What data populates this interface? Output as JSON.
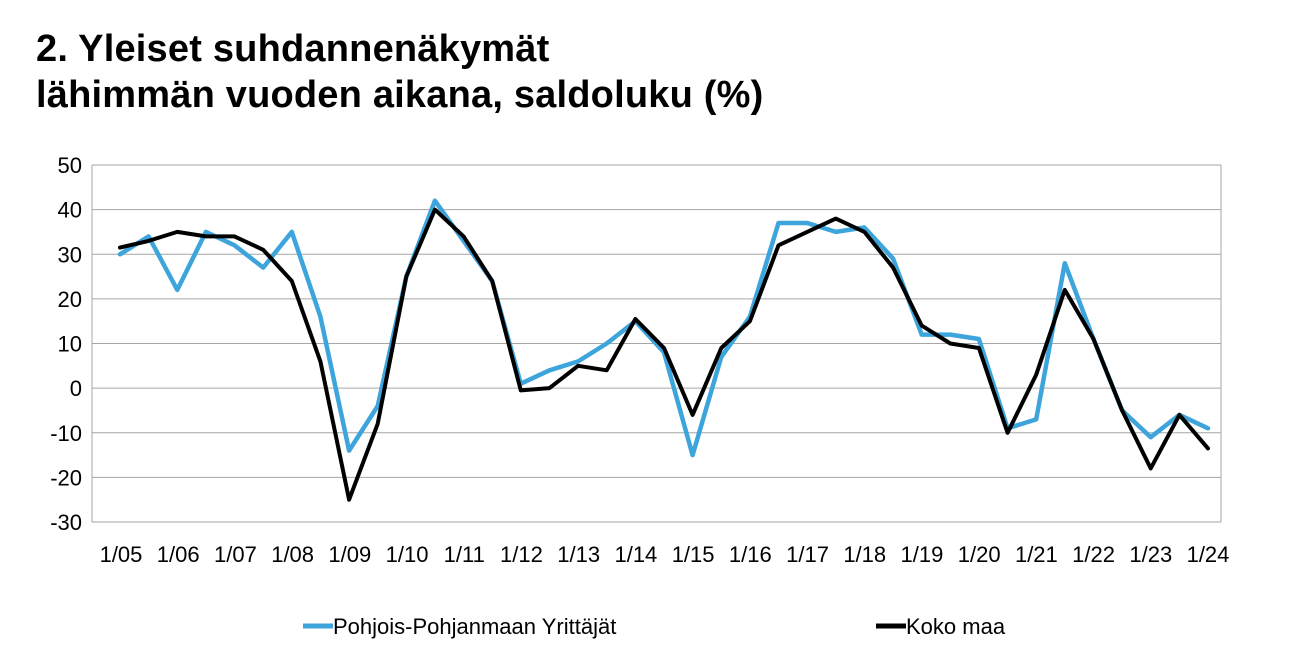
{
  "chart_data": {
    "type": "line",
    "title": "2. Yleiset suhdannenäkymät lähimmän vuoden aikana, saldoluku (%)",
    "title_lines": [
      "2. Yleiset suhdannenäkymät",
      "lähimmän vuoden aikana, saldoluku (%)"
    ],
    "ylim": [
      -30,
      50
    ],
    "yticks": [
      50,
      40,
      30,
      20,
      10,
      0,
      -10,
      -20,
      -30
    ],
    "xtick_labels": [
      "1/05",
      "1/06",
      "1/07",
      "1/08",
      "1/09",
      "1/10",
      "1/11",
      "1/12",
      "1/13",
      "1/14",
      "1/15",
      "1/16",
      "1/17",
      "1/18",
      "1/19",
      "1/20",
      "1/21",
      "1/22",
      "1/23",
      "1/24"
    ],
    "grid": true,
    "legend_position": "bottom",
    "x_period_start": "1/05",
    "series": [
      {
        "name": "Pohjois-Pohjanmaan Yrittäjät",
        "color": "#3ea4dc",
        "values": [
          30,
          34,
          22,
          35,
          32,
          27,
          35,
          16,
          -14,
          -4,
          25,
          42,
          33,
          24,
          1,
          4,
          6,
          10,
          15,
          8,
          -15,
          7,
          16,
          37,
          37,
          35,
          36,
          29,
          12,
          12,
          11,
          -9,
          -7,
          28,
          11,
          -5,
          -11,
          -6,
          -9
        ]
      },
      {
        "name": "Koko maa",
        "color": "#000000",
        "values": [
          31.5,
          33,
          35,
          34,
          34,
          31,
          24,
          6,
          -25,
          -8,
          25,
          40,
          34,
          24,
          -0.5,
          0,
          5,
          4,
          15.5,
          9,
          -6,
          9,
          15,
          32,
          35,
          38,
          35,
          27,
          14,
          10,
          9,
          -10,
          3,
          22,
          11,
          -5,
          -18,
          -6,
          -13.5
        ]
      }
    ]
  }
}
